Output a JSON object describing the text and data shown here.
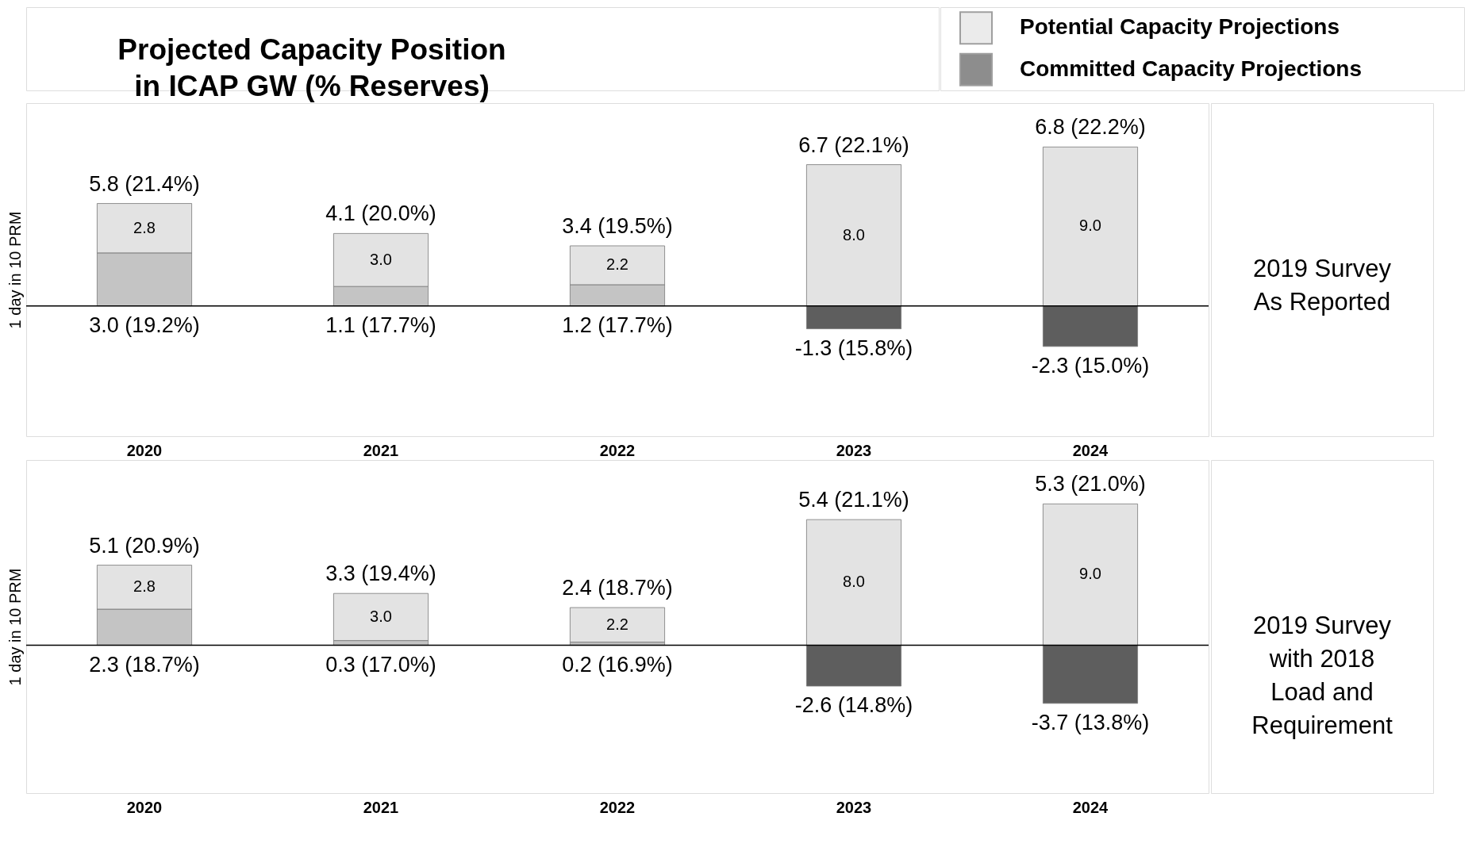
{
  "chart_data": [
    {
      "type": "bar",
      "title": "Projected Capacity Position\nin ICAP GW (% Reserves)",
      "ylabel": "1 day in 10 PRM",
      "categories": [
        "2020",
        "2021",
        "2022",
        "2023",
        "2024"
      ],
      "stacked": true,
      "legend": "top right",
      "series": [
        {
          "name": "Committed Capacity Projections",
          "color": "#5e5e5e",
          "colors": [
            "#c4c4c4",
            "#c4c4c4",
            "#c4c4c4",
            "#5e5e5e",
            "#5e5e5e"
          ],
          "values": [
            3.0,
            1.1,
            1.2,
            -1.3,
            -2.3
          ],
          "value_labels": [
            "3.0 (19.2%)",
            "1.1 (17.7%)",
            "1.2 (17.7%)",
            "-1.3 (15.8%)",
            "-2.3 (15.0%)"
          ]
        },
        {
          "name": "Potential Capacity Projections",
          "color": "#e3e3e3",
          "values": [
            2.8,
            3.0,
            2.2,
            8.0,
            9.0
          ],
          "value_labels": [
            "2.8",
            "3.0",
            "2.2",
            "8.0",
            "9.0"
          ]
        }
      ],
      "totals": [
        "5.8 (21.4%)",
        "4.1 (20.0%)",
        "3.4 (19.5%)",
        "6.7 (22.1%)",
        "6.8 (22.2%)"
      ],
      "ref_lines": [
        {
          "axis": "y",
          "value": 0
        }
      ],
      "annotations": [
        "2019 Survey\nAs Reported"
      ]
    },
    {
      "type": "bar",
      "ylabel": "1 day in 10 PRM",
      "categories": [
        "2020",
        "2021",
        "2022",
        "2023",
        "2024"
      ],
      "stacked": true,
      "series": [
        {
          "colors": [
            "#c4c4c4",
            "#c4c4c4",
            "#c4c4c4",
            "#5e5e5e",
            "#5e5e5e"
          ],
          "values": [
            2.3,
            0.3,
            0.2,
            -2.6,
            -3.7
          ],
          "value_labels": [
            "2.3 (18.7%)",
            "0.3 (17.0%)",
            "0.2 (16.9%)",
            "-2.6 (14.8%)",
            "-3.7 (13.8%)"
          ]
        },
        {
          "color": "#e3e3e3",
          "values": [
            2.8,
            3.0,
            2.2,
            8.0,
            9.0
          ],
          "value_labels": [
            "2.8",
            "3.0",
            "2.2",
            "8.0",
            "9.0"
          ]
        }
      ],
      "totals": [
        "5.1 (20.9%)",
        "3.3 (19.4%)",
        "2.4 (18.7%)",
        "5.4 (21.1%)",
        "5.3 (21.0%)"
      ],
      "ref_lines": [
        {
          "axis": "y",
          "value": 0
        }
      ],
      "annotations": [
        "2019 Survey\nwith 2018\nLoad and\nRequirement"
      ]
    }
  ]
}
